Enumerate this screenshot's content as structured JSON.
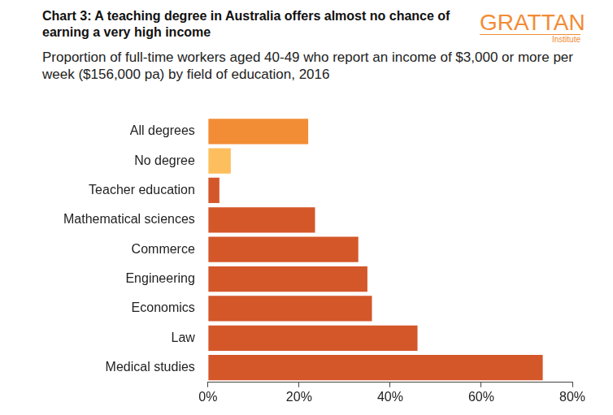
{
  "chart_data": {
    "type": "bar",
    "orientation": "horizontal",
    "title": "Chart 3: A teaching degree in Australia offers almost no chance of earning a very high income",
    "subtitle": "Proportion of full-time workers aged 40-49 who report an income of $3,000 or more per week ($156,000 pa) by field of education, 2016",
    "annotations": [
      "GRATTAN",
      "Institute"
    ],
    "categories": [
      "All degrees",
      "No degree",
      "Teacher education",
      "Mathematical sciences",
      "Commerce",
      "Engineering",
      "Economics",
      "Law",
      "Medical studies"
    ],
    "values": [
      22,
      5,
      2.5,
      23.5,
      33,
      35,
      36,
      46,
      73.5
    ],
    "colors": [
      "#f28c35",
      "#fdbf5e",
      "#d4572a",
      "#d4572a",
      "#d4572a",
      "#d4572a",
      "#d4572a",
      "#d4572a",
      "#d4572a"
    ],
    "xlim": [
      0,
      80
    ],
    "xticks": [
      {
        "value": 0,
        "label": "0%"
      },
      {
        "value": 20,
        "label": "20%"
      },
      {
        "value": 40,
        "label": "40%"
      },
      {
        "value": 60,
        "label": "60%"
      },
      {
        "value": 80,
        "label": "80%"
      }
    ],
    "grid": false
  }
}
